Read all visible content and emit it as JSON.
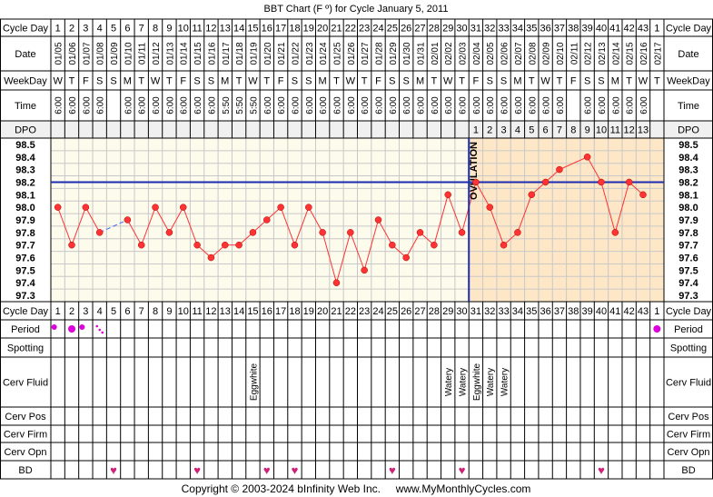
{
  "title": "BBT Chart (F º) for Cycle January 5, 2011",
  "footer": "Copyright © 2003-2024 bInfinity Web Inc.     www.MyMonthlyCycles.com",
  "row_labels": {
    "cycle_day": "Cycle Day",
    "date": "Date",
    "weekday": "WeekDay",
    "time": "Time",
    "dpo": "DPO",
    "period": "Period",
    "spotting": "Spotting",
    "cerv_fluid": "Cerv Fluid",
    "cerv_pos": "Cerv Pos",
    "cerv_firm": "Cerv Firm",
    "cerv_opn": "Cerv Opn",
    "bd": "BD"
  },
  "columns": {
    "cycle_days": [
      "1",
      "2",
      "3",
      "4",
      "5",
      "6",
      "7",
      "8",
      "9",
      "10",
      "11",
      "12",
      "13",
      "14",
      "15",
      "16",
      "17",
      "18",
      "19",
      "20",
      "21",
      "22",
      "23",
      "24",
      "25",
      "26",
      "27",
      "28",
      "29",
      "30",
      "31",
      "32",
      "33",
      "34",
      "35",
      "36",
      "37",
      "38",
      "39",
      "40",
      "41",
      "42",
      "43",
      "1"
    ],
    "dates": [
      "01/05",
      "01/06",
      "01/07",
      "01/08",
      "01/09",
      "01/10",
      "01/11",
      "01/12",
      "01/13",
      "01/14",
      "01/15",
      "01/16",
      "01/17",
      "01/18",
      "01/19",
      "01/20",
      "01/21",
      "01/22",
      "01/23",
      "01/24",
      "01/25",
      "01/26",
      "01/27",
      "01/28",
      "01/29",
      "01/30",
      "01/31",
      "02/01",
      "02/02",
      "02/03",
      "02/04",
      "02/05",
      "02/06",
      "02/07",
      "02/08",
      "02/09",
      "02/10",
      "02/11",
      "02/12",
      "02/13",
      "02/14",
      "02/15",
      "02/16",
      "02/17"
    ],
    "weekdays": [
      "W",
      "T",
      "F",
      "S",
      "S",
      "M",
      "T",
      "W",
      "T",
      "F",
      "S",
      "S",
      "M",
      "T",
      "W",
      "T",
      "F",
      "S",
      "S",
      "M",
      "T",
      "W",
      "T",
      "F",
      "S",
      "S",
      "M",
      "T",
      "W",
      "T",
      "F",
      "S",
      "S",
      "M",
      "T",
      "W",
      "T",
      "F",
      "S",
      "S",
      "M",
      "T",
      "W",
      "T"
    ],
    "times": [
      "6:00",
      "6:00",
      "6:00",
      "6:00",
      "",
      "6:00",
      "6:00",
      "6:00",
      "6:00",
      "6:00",
      "6:00",
      "6:00",
      "5:50",
      "5:50",
      "5:50",
      "6:00",
      "6:00",
      "6:00",
      "6:00",
      "6:00",
      "6:00",
      "6:00",
      "6:00",
      "6:00",
      "6:00",
      "6:00",
      "6:00",
      "6:00",
      "6:00",
      "6:00",
      "6:00",
      "6:00",
      "6:00",
      "6:00",
      "6:00",
      "6:00",
      "6:00",
      "",
      "6:00",
      "6:00",
      "6:00",
      "6:00",
      "6:00",
      ""
    ],
    "dpo": [
      "",
      "",
      "",
      "",
      "",
      "",
      "",
      "",
      "",
      "",
      "",
      "",
      "",
      "",
      "",
      "",
      "",
      "",
      "",
      "",
      "",
      "",
      "",
      "",
      "",
      "",
      "",
      "",
      "",
      "",
      "1",
      "2",
      "3",
      "4",
      "5",
      "6",
      "7",
      "8",
      "9",
      "10",
      "11",
      "12",
      "13",
      ""
    ],
    "period": [
      "dot-medium",
      "dot-heavy",
      "dot-medium",
      "spotting-dots",
      "",
      "",
      "",
      "",
      "",
      "",
      "",
      "",
      "",
      "",
      "",
      "",
      "",
      "",
      "",
      "",
      "",
      "",
      "",
      "",
      "",
      "",
      "",
      "",
      "",
      "",
      "",
      "",
      "",
      "",
      "",
      "",
      "",
      "",
      "",
      "",
      "",
      "",
      "",
      "dot-heavy"
    ],
    "cerv_fluid": [
      "",
      "",
      "",
      "",
      "",
      "",
      "",
      "",
      "",
      "",
      "",
      "",
      "",
      "",
      "Eggwhite",
      "",
      "",
      "",
      "",
      "",
      "",
      "",
      "",
      "",
      "",
      "",
      "",
      "",
      "Watery",
      "Watery",
      "Eggwhite",
      "Watery",
      "Watery",
      "",
      "",
      "",
      "",
      "",
      "",
      "",
      "",
      "",
      "",
      ""
    ],
    "bd": [
      false,
      false,
      false,
      false,
      true,
      false,
      false,
      false,
      false,
      false,
      true,
      false,
      false,
      false,
      false,
      true,
      false,
      true,
      false,
      false,
      false,
      false,
      false,
      false,
      true,
      false,
      false,
      false,
      false,
      true,
      false,
      false,
      false,
      false,
      false,
      false,
      false,
      false,
      false,
      true,
      false,
      false,
      false,
      false
    ],
    "heart_glyph": "♥"
  },
  "chart_data": {
    "type": "line",
    "title": "BBT Chart (F º) for Cycle January 5, 2011",
    "x": [
      1,
      2,
      3,
      4,
      5,
      6,
      7,
      8,
      9,
      10,
      11,
      12,
      13,
      14,
      15,
      16,
      17,
      18,
      19,
      20,
      21,
      22,
      23,
      24,
      25,
      26,
      27,
      28,
      29,
      30,
      31,
      32,
      33,
      34,
      35,
      36,
      37,
      38,
      39,
      40,
      41,
      42,
      43
    ],
    "values": [
      98.0,
      97.7,
      98.0,
      97.8,
      null,
      97.9,
      97.7,
      98.0,
      97.8,
      98.0,
      97.7,
      97.6,
      97.7,
      97.7,
      97.8,
      97.9,
      98.0,
      97.7,
      98.0,
      97.8,
      97.4,
      97.8,
      97.5,
      97.9,
      97.7,
      97.6,
      97.8,
      97.7,
      98.1,
      97.8,
      98.2,
      98.0,
      97.7,
      97.8,
      98.1,
      98.2,
      98.3,
      null,
      98.4,
      98.2,
      97.8,
      98.2,
      98.1
    ],
    "y_ticks": [
      "98.5",
      "98.4",
      "98.3",
      "98.2",
      "98.1",
      "98.0",
      "97.9",
      "97.8",
      "97.7",
      "97.6",
      "97.5",
      "97.4",
      "97.3"
    ],
    "ylim": [
      97.3,
      98.5
    ],
    "coverline": 98.2,
    "ovulation_day": 30,
    "ovulation_label": "OVULATION",
    "grid": true,
    "colors": {
      "line": "#ff3333",
      "marker": "#ff3333",
      "coverline": "#1c2bb0",
      "ovulation": "#1c2bb0",
      "dashed_gap": "#4466ff",
      "pre_bg": "#fdfbec",
      "post_bg": "#fde7c6",
      "grid": "#c8c8c8",
      "period": "#dd00dd",
      "heart": "#cc2277",
      "border": "#000000",
      "text": "#000000"
    }
  }
}
